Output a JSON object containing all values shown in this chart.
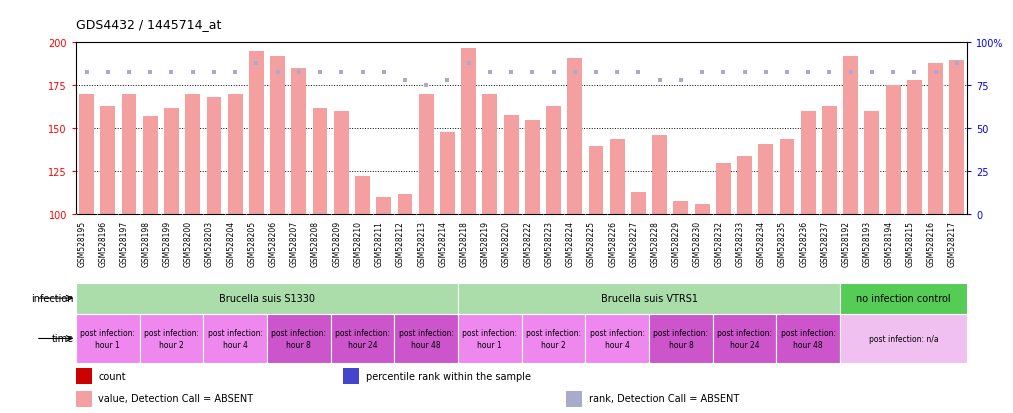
{
  "title": "GDS4432 / 1445714_at",
  "gsm_labels": [
    "GSM528195",
    "GSM528196",
    "GSM528197",
    "GSM528198",
    "GSM528199",
    "GSM528200",
    "GSM528203",
    "GSM528204",
    "GSM528205",
    "GSM528206",
    "GSM528207",
    "GSM528208",
    "GSM528209",
    "GSM528210",
    "GSM528211",
    "GSM528212",
    "GSM528213",
    "GSM528214",
    "GSM528218",
    "GSM528219",
    "GSM528220",
    "GSM528222",
    "GSM528223",
    "GSM528224",
    "GSM528225",
    "GSM528226",
    "GSM528227",
    "GSM528228",
    "GSM528229",
    "GSM528230",
    "GSM528232",
    "GSM528233",
    "GSM528234",
    "GSM528235",
    "GSM528236",
    "GSM528237",
    "GSM528192",
    "GSM528193",
    "GSM528194",
    "GSM528215",
    "GSM528216",
    "GSM528217"
  ],
  "bar_values": [
    170,
    163,
    170,
    157,
    162,
    170,
    168,
    170,
    195,
    192,
    185,
    162,
    160,
    122,
    110,
    112,
    170,
    148,
    197,
    170,
    158,
    155,
    163,
    191,
    140,
    144,
    113,
    146,
    108,
    106,
    130,
    134,
    141,
    144,
    160,
    163,
    192,
    160,
    175,
    178,
    188,
    190
  ],
  "rank_values": [
    83,
    83,
    83,
    83,
    83,
    83,
    83,
    83,
    88,
    83,
    83,
    83,
    83,
    83,
    83,
    78,
    75,
    78,
    88,
    83,
    83,
    83,
    83,
    83,
    83,
    83,
    83,
    78,
    78,
    83,
    83,
    83,
    83,
    83,
    83,
    83,
    83,
    83,
    83,
    83,
    83,
    88
  ],
  "ylim_left": [
    100,
    200
  ],
  "ylim_right": [
    0,
    100
  ],
  "yticks_left": [
    100,
    125,
    150,
    175,
    200
  ],
  "yticks_right": [
    0,
    25,
    50,
    75,
    100
  ],
  "ytick_labels_right": [
    "0",
    "25",
    "50",
    "75",
    "100%"
  ],
  "bar_color": "#f4a0a0",
  "rank_color": "#aaaacc",
  "infection_groups": [
    {
      "label": "Brucella suis S1330",
      "start": 0,
      "end": 18,
      "color": "#aaddaa"
    },
    {
      "label": "Brucella suis VTRS1",
      "start": 18,
      "end": 36,
      "color": "#aaddaa"
    },
    {
      "label": "no infection control",
      "start": 36,
      "end": 42,
      "color": "#55cc55"
    }
  ],
  "time_groups": [
    {
      "label": "post infection:\nhour 1",
      "start": 0,
      "end": 3,
      "color": "#ee88ee"
    },
    {
      "label": "post infection:\nhour 2",
      "start": 3,
      "end": 6,
      "color": "#ee88ee"
    },
    {
      "label": "post infection:\nhour 4",
      "start": 6,
      "end": 9,
      "color": "#ee88ee"
    },
    {
      "label": "post infection:\nhour 8",
      "start": 9,
      "end": 12,
      "color": "#cc55cc"
    },
    {
      "label": "post infection:\nhour 24",
      "start": 12,
      "end": 15,
      "color": "#cc55cc"
    },
    {
      "label": "post infection:\nhour 48",
      "start": 15,
      "end": 18,
      "color": "#cc55cc"
    },
    {
      "label": "post infection:\nhour 1",
      "start": 18,
      "end": 21,
      "color": "#ee88ee"
    },
    {
      "label": "post infection:\nhour 2",
      "start": 21,
      "end": 24,
      "color": "#ee88ee"
    },
    {
      "label": "post infection:\nhour 4",
      "start": 24,
      "end": 27,
      "color": "#ee88ee"
    },
    {
      "label": "post infection:\nhour 8",
      "start": 27,
      "end": 30,
      "color": "#cc55cc"
    },
    {
      "label": "post infection:\nhour 24",
      "start": 30,
      "end": 33,
      "color": "#cc55cc"
    },
    {
      "label": "post infection:\nhour 48",
      "start": 33,
      "end": 36,
      "color": "#cc55cc"
    },
    {
      "label": "post infection: n/a",
      "start": 36,
      "end": 42,
      "color": "#f0c0f0"
    }
  ],
  "legend_items": [
    {
      "color": "#cc0000",
      "label": "count"
    },
    {
      "color": "#4444cc",
      "label": "percentile rank within the sample"
    },
    {
      "color": "#f4a0a0",
      "label": "value, Detection Call = ABSENT"
    },
    {
      "color": "#aaaacc",
      "label": "rank, Detection Call = ABSENT"
    }
  ]
}
